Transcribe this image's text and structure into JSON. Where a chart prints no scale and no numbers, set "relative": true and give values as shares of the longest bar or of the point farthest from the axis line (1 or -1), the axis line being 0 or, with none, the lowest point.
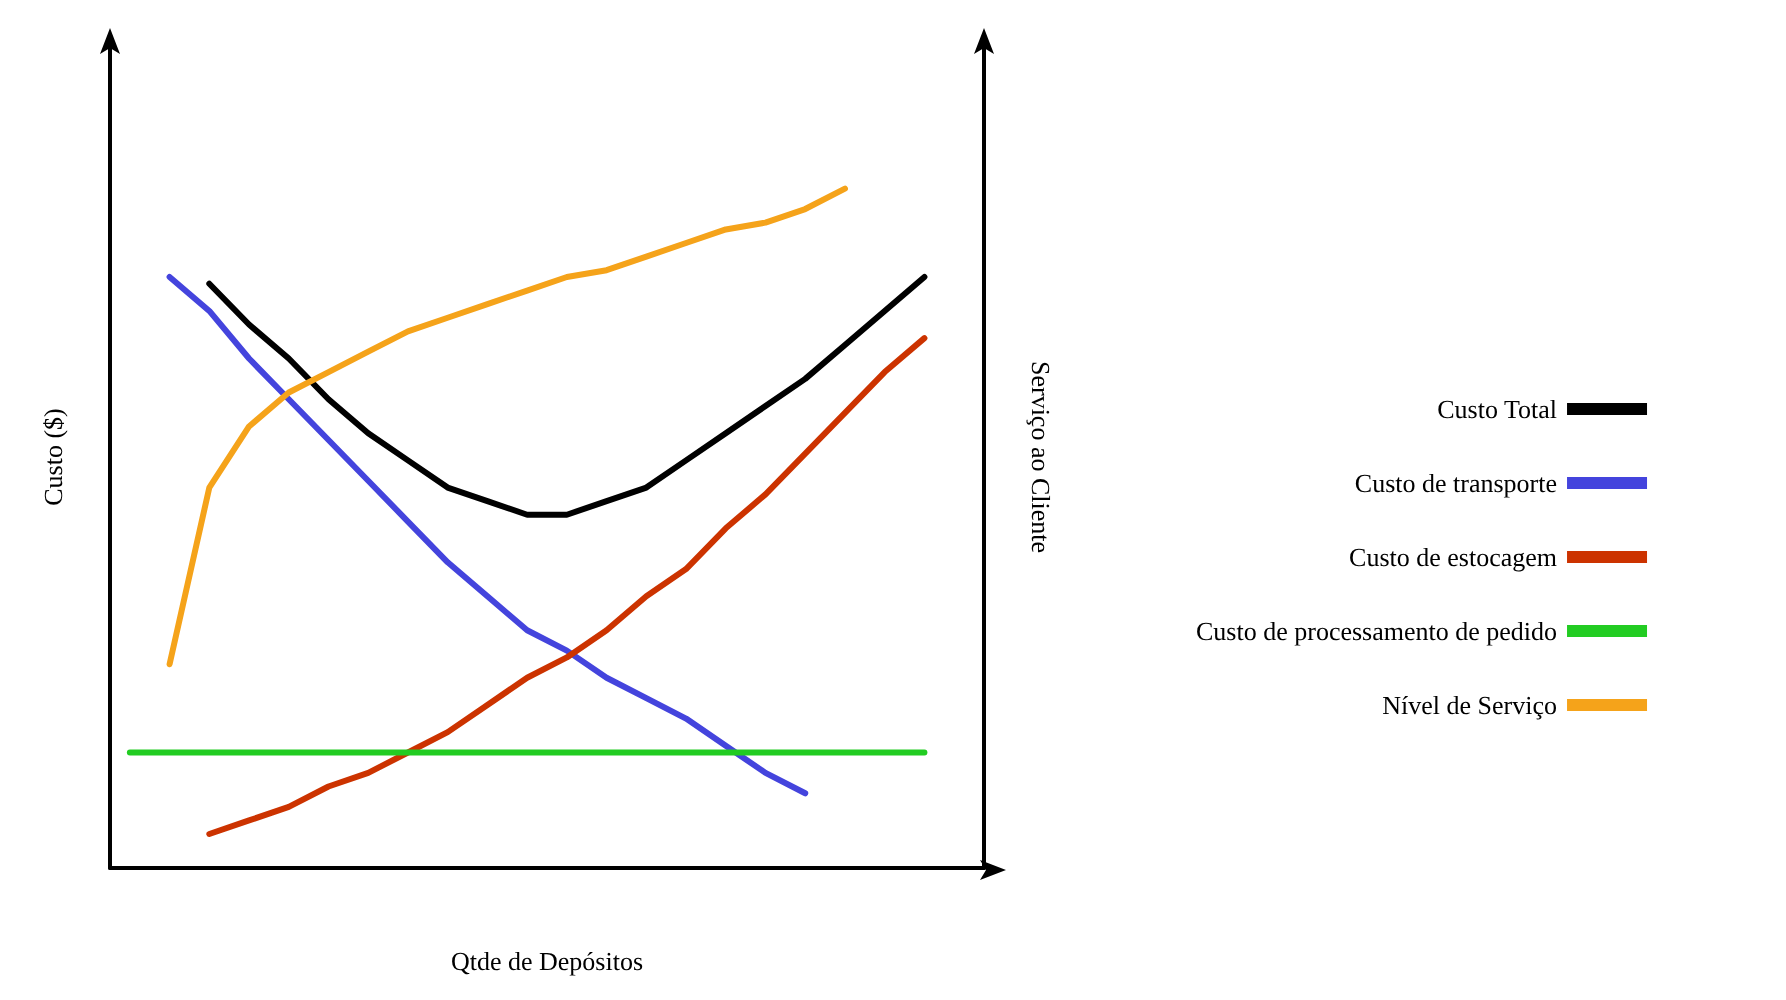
{
  "chart_data": {
    "type": "line",
    "relative": true,
    "xlabel": "Qtde de Depósitos",
    "ylabel": "Custo ($)",
    "y2label": "Serviço ao Cliente",
    "legend": "right",
    "grid": false,
    "marker": "none",
    "line_style": "solid",
    "categories": [
      null,
      null,
      null,
      null,
      null,
      null,
      null,
      null,
      null,
      null,
      null,
      null,
      null,
      null,
      null,
      null,
      null,
      null,
      null,
      null,
      null,
      null
    ],
    "series": [
      {
        "name": "Custo Total",
        "color": "#000000",
        "values": [
          null,
          null,
          0.86,
          0.8,
          0.75,
          0.69,
          0.64,
          0.6,
          0.56,
          0.54,
          0.52,
          0.52,
          0.54,
          0.56,
          0.6,
          0.64,
          0.68,
          0.72,
          0.77,
          0.82,
          0.87,
          null
        ]
      },
      {
        "name": "Custo de transporte",
        "color": "#4444dd",
        "values": [
          null,
          0.87,
          0.82,
          0.75,
          0.69,
          0.63,
          0.57,
          0.51,
          0.45,
          0.4,
          0.35,
          0.32,
          0.28,
          0.25,
          0.22,
          0.18,
          0.14,
          0.11,
          null,
          null,
          null,
          null
        ]
      },
      {
        "name": "Custo de estocagem",
        "color": "#cc3300",
        "values": [
          null,
          null,
          0.05,
          0.07,
          0.09,
          0.12,
          0.14,
          0.17,
          0.2,
          0.24,
          0.28,
          0.31,
          0.35,
          0.4,
          0.44,
          0.5,
          0.55,
          0.61,
          0.67,
          0.73,
          0.78,
          null
        ]
      },
      {
        "name": "Custo de processamento de pedido",
        "color": "#22cc22",
        "values": [
          0.17,
          0.17,
          0.17,
          0.17,
          0.17,
          0.17,
          0.17,
          0.17,
          0.17,
          0.17,
          0.17,
          0.17,
          0.17,
          0.17,
          0.17,
          0.17,
          0.17,
          0.17,
          0.17,
          0.17,
          0.17,
          null
        ]
      },
      {
        "name": "Nível de Serviço",
        "color": "#f5a31a",
        "values": [
          null,
          0.3,
          0.56,
          0.65,
          0.7,
          0.73,
          0.76,
          0.79,
          0.81,
          0.83,
          0.85,
          0.87,
          0.88,
          0.9,
          0.92,
          0.94,
          0.95,
          0.97,
          1.0,
          null,
          null,
          null
        ]
      }
    ]
  }
}
